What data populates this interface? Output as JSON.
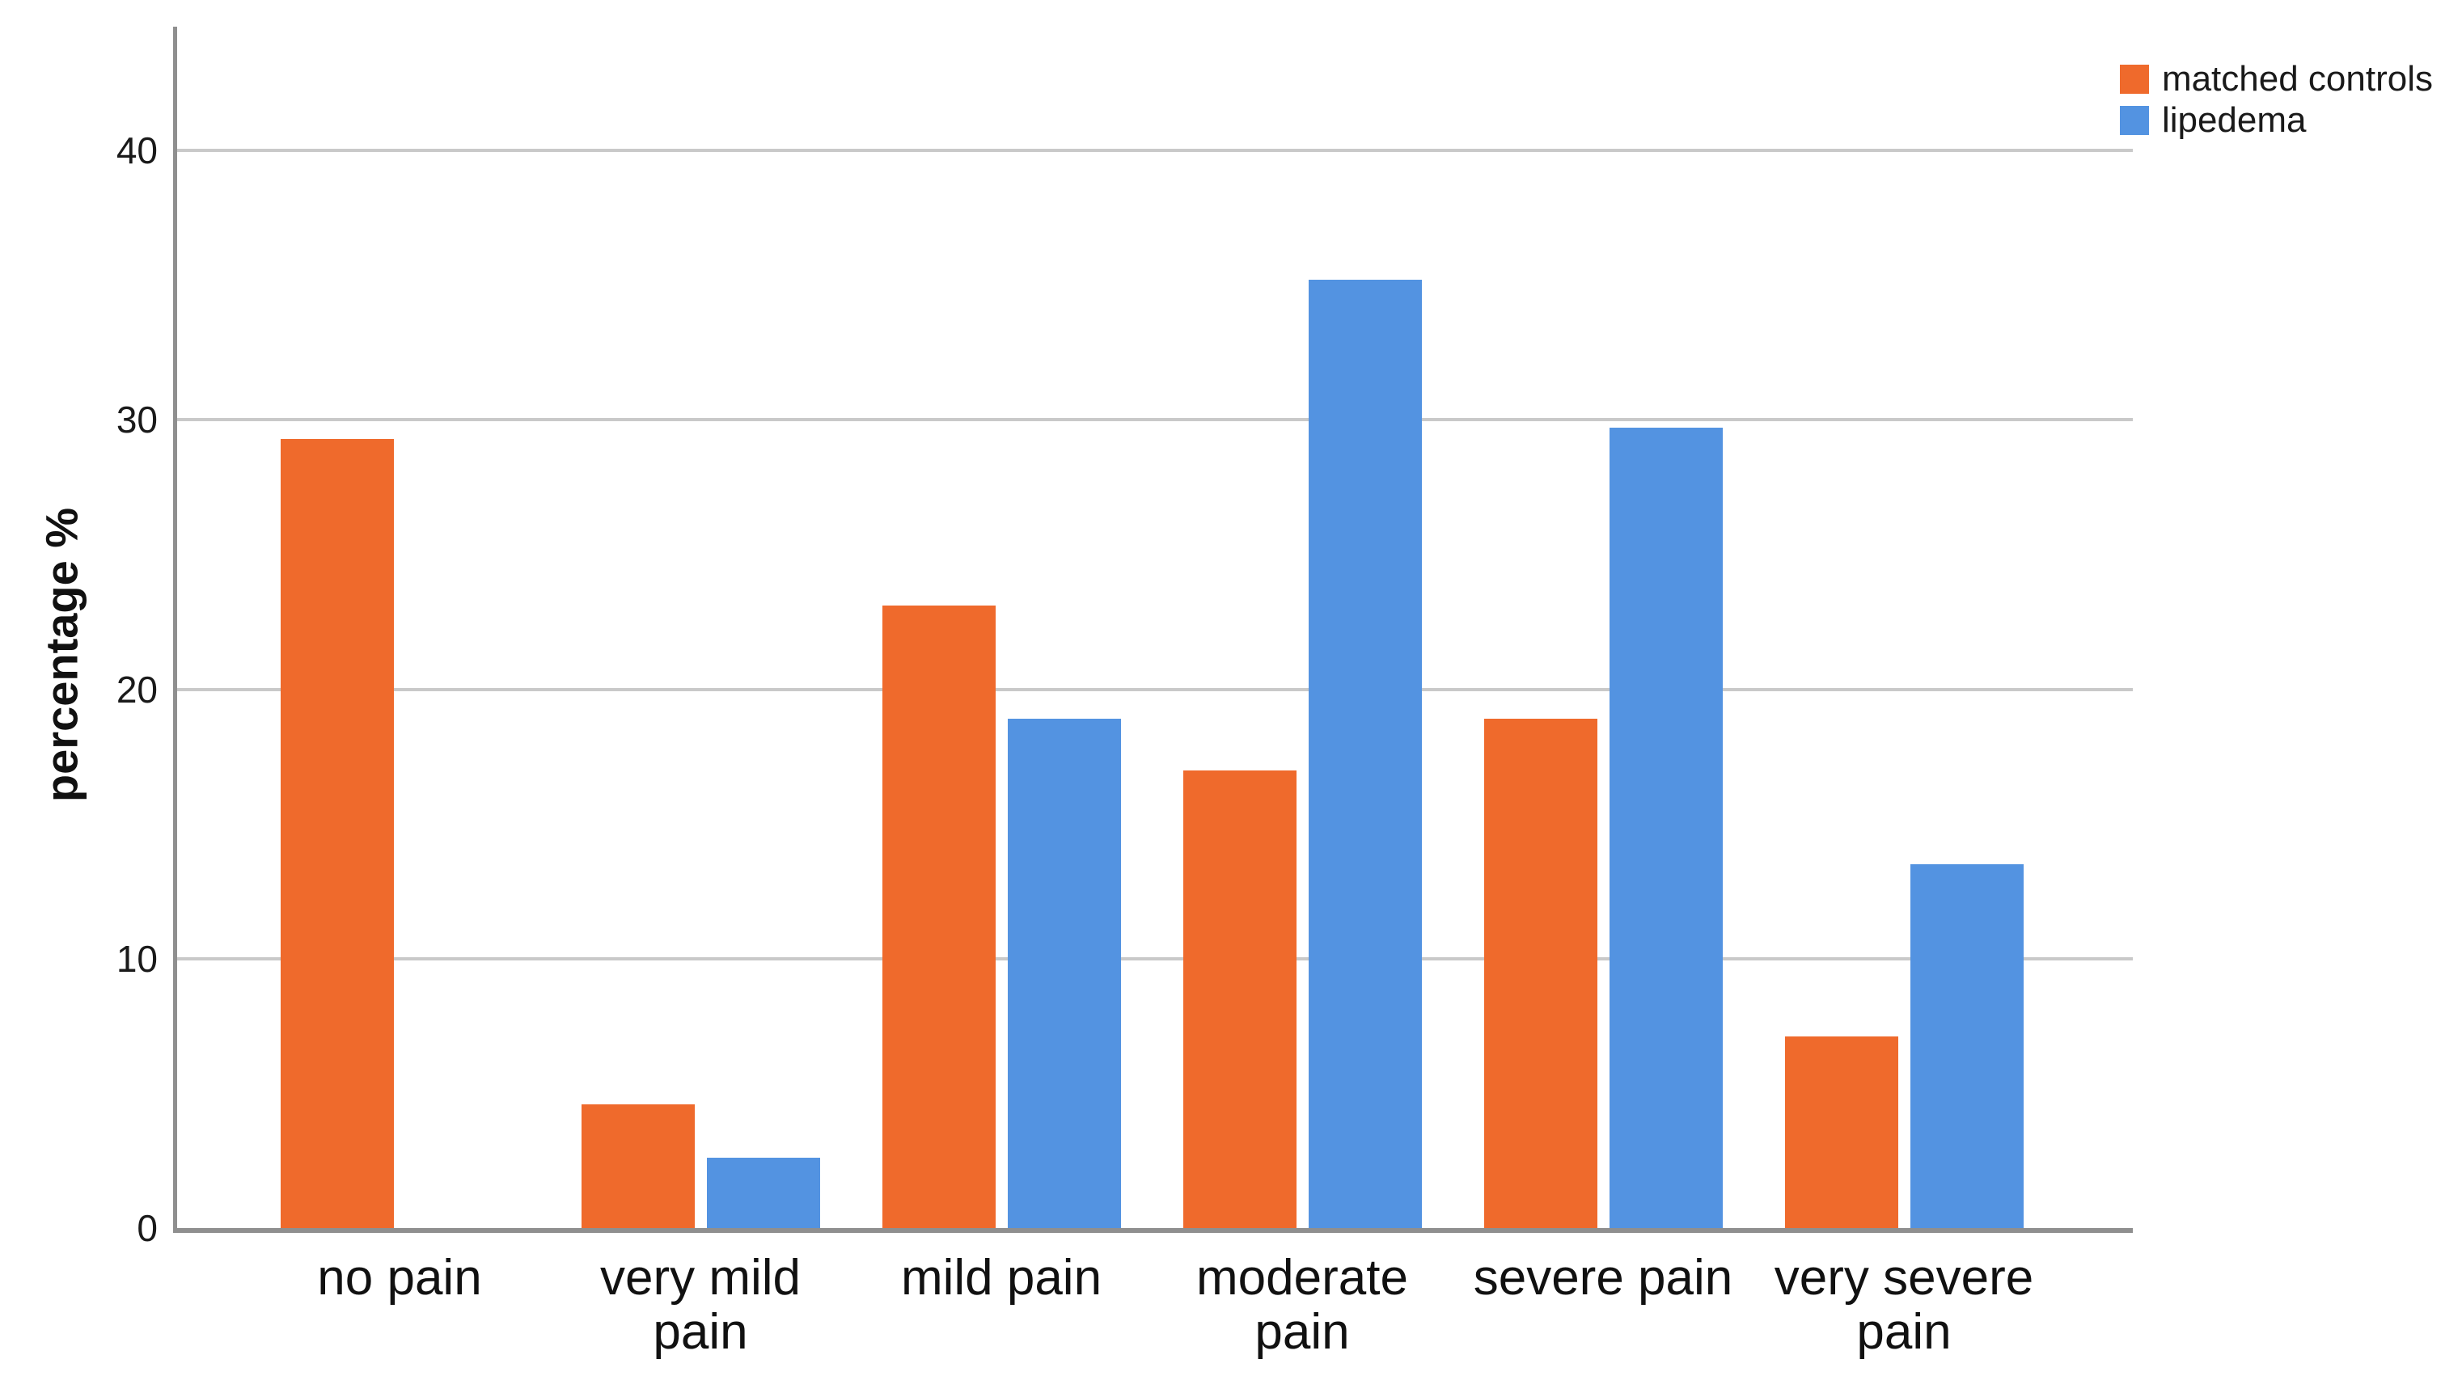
{
  "figure": {
    "background": "#FFFFFF",
    "text_color": "#1A1A1A",
    "axis_color": "#8F8F8F",
    "gridline_color": "#C9C9C9"
  },
  "chart_data": {
    "type": "bar",
    "title": "",
    "xlabel": "",
    "ylabel": "percentage %",
    "categories": [
      "no pain",
      "very mild\npain",
      "mild pain",
      "moderate\npain",
      "severe pain",
      "very severe\npain"
    ],
    "series": [
      {
        "name": "matched controls",
        "color": "#EF6A2C",
        "values": [
          29.3,
          4.6,
          23.1,
          17.0,
          18.9,
          7.1
        ]
      },
      {
        "name": "lipedema",
        "color": "#5393E1",
        "values": [
          0,
          2.6,
          18.9,
          35.2,
          29.7,
          13.5
        ]
      }
    ],
    "y_ticks": [
      0,
      10,
      20,
      30,
      40
    ],
    "ylim": [
      0,
      44.6
    ],
    "grid": "horizontal-only",
    "legend_position": "top-right"
  }
}
